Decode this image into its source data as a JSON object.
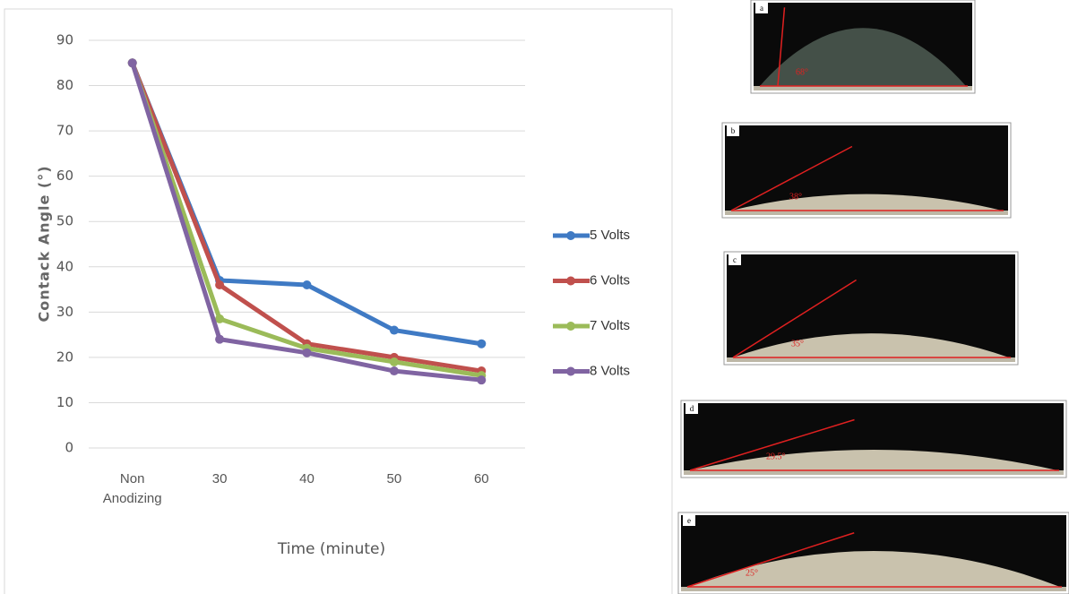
{
  "chart_data": {
    "type": "line",
    "x_label": "Time (minute)",
    "y_label": "Contack Angle (°)",
    "categories": [
      "Non Anodizing",
      "30",
      "40",
      "50",
      "60"
    ],
    "series": [
      {
        "name": "5 Volts",
        "color": "#3f7ac4",
        "values": [
          85,
          37,
          36,
          26,
          23
        ]
      },
      {
        "name": "6 Volts",
        "color": "#c0504d",
        "values": [
          85,
          36,
          23,
          20,
          17
        ]
      },
      {
        "name": "7 Volts",
        "color": "#9bbb59",
        "values": [
          85,
          28.5,
          22,
          19,
          16
        ]
      },
      {
        "name": "8 Volts",
        "color": "#8064a2",
        "values": [
          85,
          24,
          21,
          17,
          15
        ]
      }
    ],
    "ylim": [
      0,
      90
    ],
    "yticks": [
      0,
      10,
      20,
      30,
      40,
      50,
      60,
      70,
      80,
      90
    ],
    "grid": true,
    "legend": "right"
  },
  "photos": [
    {
      "label": "a",
      "angle": "68°"
    },
    {
      "label": "b",
      "angle": "38°"
    },
    {
      "label": "c",
      "angle": "35°"
    },
    {
      "label": "d",
      "angle": "29.5°"
    },
    {
      "label": "e",
      "angle": "25°"
    }
  ]
}
